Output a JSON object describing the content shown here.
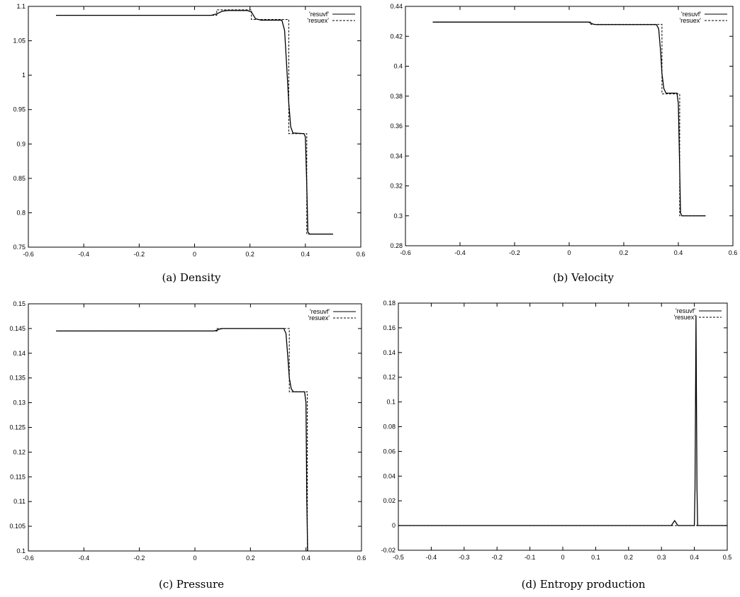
{
  "chart_data": [
    {
      "type": "line",
      "caption": "(a)  Density",
      "xlim": [
        -0.6,
        0.6
      ],
      "ylim": [
        0.75,
        1.1
      ],
      "xticks": [
        "-0.6",
        "-0.4",
        "-0.2",
        "0",
        "0.2",
        "0.4",
        "0.6"
      ],
      "yticks": [
        "0.75",
        "0.8",
        "0.85",
        "0.9",
        "0.95",
        "1",
        "1.05",
        "1.1"
      ],
      "grid": false,
      "legend_position": "top-right",
      "series": [
        {
          "name": "'resuvf'",
          "style": "solid",
          "points": [
            [
              -0.5,
              1.087
            ],
            [
              0.06,
              1.087
            ],
            [
              0.08,
              1.089
            ],
            [
              0.1,
              1.093
            ],
            [
              0.12,
              1.094
            ],
            [
              0.19,
              1.094
            ],
            [
              0.205,
              1.092
            ],
            [
              0.22,
              1.082
            ],
            [
              0.24,
              1.08
            ],
            [
              0.315,
              1.08
            ],
            [
              0.325,
              1.065
            ],
            [
              0.333,
              1.01
            ],
            [
              0.34,
              0.96
            ],
            [
              0.347,
              0.925
            ],
            [
              0.355,
              0.916
            ],
            [
              0.395,
              0.915
            ],
            [
              0.4,
              0.91
            ],
            [
              0.405,
              0.84
            ],
            [
              0.409,
              0.772
            ],
            [
              0.415,
              0.769
            ],
            [
              0.5,
              0.769
            ]
          ]
        },
        {
          "name": "'resuex'",
          "style": "dashed",
          "points": [
            [
              -0.5,
              1.087
            ],
            [
              0.08,
              1.087
            ],
            [
              0.08,
              1.095
            ],
            [
              0.205,
              1.095
            ],
            [
              0.205,
              1.081
            ],
            [
              0.34,
              1.081
            ],
            [
              0.34,
              0.915
            ],
            [
              0.405,
              0.915
            ],
            [
              0.405,
              0.769
            ],
            [
              0.5,
              0.769
            ]
          ]
        }
      ]
    },
    {
      "type": "line",
      "caption": "(b)  Velocity",
      "xlim": [
        -0.6,
        0.6
      ],
      "ylim": [
        0.28,
        0.44
      ],
      "xticks": [
        "-0.6",
        "-0.4",
        "-0.2",
        "0",
        "0.2",
        "0.4",
        "0.6"
      ],
      "yticks": [
        "0.28",
        "0.3",
        "0.32",
        "0.34",
        "0.36",
        "0.38",
        "0.4",
        "0.42",
        "0.44"
      ],
      "grid": false,
      "legend_position": "top-right",
      "series": [
        {
          "name": "'resuvf'",
          "style": "solid",
          "points": [
            [
              -0.5,
              0.4295
            ],
            [
              0.07,
              0.4295
            ],
            [
              0.09,
              0.428
            ],
            [
              0.1,
              0.4278
            ],
            [
              0.32,
              0.4278
            ],
            [
              0.328,
              0.425
            ],
            [
              0.335,
              0.41
            ],
            [
              0.34,
              0.395
            ],
            [
              0.347,
              0.385
            ],
            [
              0.355,
              0.382
            ],
            [
              0.395,
              0.382
            ],
            [
              0.4,
              0.375
            ],
            [
              0.404,
              0.34
            ],
            [
              0.408,
              0.302
            ],
            [
              0.413,
              0.3
            ],
            [
              0.5,
              0.3
            ]
          ]
        },
        {
          "name": "'resuex'",
          "style": "dashed",
          "points": [
            [
              -0.5,
              0.4295
            ],
            [
              0.08,
              0.4295
            ],
            [
              0.08,
              0.428
            ],
            [
              0.34,
              0.428
            ],
            [
              0.34,
              0.3815
            ],
            [
              0.405,
              0.3815
            ],
            [
              0.405,
              0.3
            ],
            [
              0.5,
              0.3
            ]
          ]
        }
      ]
    },
    {
      "type": "line",
      "caption": "(c)  Pressure",
      "xlim": [
        -0.6,
        0.6
      ],
      "ylim": [
        0.1,
        0.15
      ],
      "xticks": [
        "-0.6",
        "-0.4",
        "-0.2",
        "0",
        "0.2",
        "0.4",
        "0.6"
      ],
      "yticks": [
        "0.1",
        "0.105",
        "0.11",
        "0.115",
        "0.12",
        "0.125",
        "0.13",
        "0.135",
        "0.14",
        "0.145",
        "0.15"
      ],
      "grid": false,
      "legend_position": "top-right",
      "series": [
        {
          "name": "'resuvf'",
          "style": "solid",
          "points": [
            [
              -0.5,
              0.1445
            ],
            [
              0.07,
              0.1445
            ],
            [
              0.09,
              0.1449
            ],
            [
              0.1,
              0.145
            ],
            [
              0.32,
              0.145
            ],
            [
              0.328,
              0.144
            ],
            [
              0.335,
              0.139
            ],
            [
              0.34,
              0.135
            ],
            [
              0.347,
              0.1328
            ],
            [
              0.355,
              0.1322
            ],
            [
              0.395,
              0.1322
            ],
            [
              0.4,
              0.13
            ],
            [
              0.403,
              0.11
            ],
            [
              0.406,
              0.1
            ]
          ]
        },
        {
          "name": "'resuex'",
          "style": "dashed",
          "points": [
            [
              -0.5,
              0.1445
            ],
            [
              0.08,
              0.1445
            ],
            [
              0.08,
              0.145
            ],
            [
              0.34,
              0.145
            ],
            [
              0.34,
              0.1322
            ],
            [
              0.405,
              0.1322
            ],
            [
              0.405,
              0.1
            ]
          ]
        }
      ]
    },
    {
      "type": "line",
      "caption": "(d)  Entropy production",
      "xlim": [
        -0.5,
        0.5
      ],
      "ylim": [
        -0.02,
        0.18
      ],
      "xticks": [
        "-0.5",
        "-0.4",
        "-0.3",
        "-0.2",
        "-0.1",
        "0",
        "0.1",
        "0.2",
        "0.3",
        "0.4",
        "0.5"
      ],
      "yticks": [
        "-0.02",
        "0",
        "0.02",
        "0.04",
        "0.06",
        "0.08",
        "0.1",
        "0.12",
        "0.14",
        "0.16",
        "0.18"
      ],
      "grid": false,
      "legend_position": "top-right",
      "series": [
        {
          "name": "'resuvf'",
          "style": "solid",
          "points": [
            [
              -0.5,
              0
            ],
            [
              0.33,
              0
            ],
            [
              0.335,
              0.002
            ],
            [
              0.34,
              0.004
            ],
            [
              0.345,
              0.002
            ],
            [
              0.35,
              0
            ],
            [
              0.4,
              0
            ],
            [
              0.402,
              0.03
            ],
            [
              0.404,
              0.12
            ],
            [
              0.405,
              0.17
            ],
            [
              0.406,
              0.12
            ],
            [
              0.408,
              0.03
            ],
            [
              0.41,
              0
            ],
            [
              0.5,
              0
            ]
          ]
        },
        {
          "name": "'resuex'",
          "style": "dashed",
          "points": [
            [
              -0.5,
              0
            ],
            [
              0.5,
              0
            ]
          ]
        }
      ]
    }
  ]
}
